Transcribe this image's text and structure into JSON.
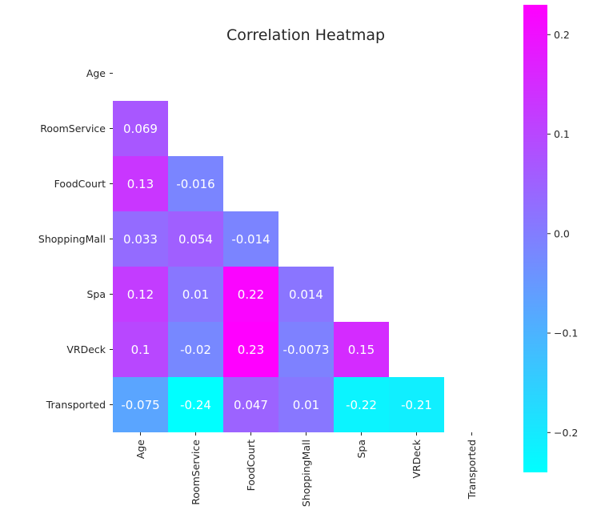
{
  "chart_data": {
    "type": "heatmap",
    "title": "Correlation Heatmap",
    "xlabel": "",
    "ylabel": "",
    "labels": [
      "Age",
      "RoomService",
      "FoodCourt",
      "ShoppingMall",
      "Spa",
      "VRDeck",
      "Transported"
    ],
    "mask": "upper-triangle-including-diagonal",
    "matrix": [
      [
        null,
        null,
        null,
        null,
        null,
        null,
        null
      ],
      [
        0.069,
        null,
        null,
        null,
        null,
        null,
        null
      ],
      [
        0.13,
        -0.016,
        null,
        null,
        null,
        null,
        null
      ],
      [
        0.033,
        0.054,
        -0.014,
        null,
        null,
        null,
        null
      ],
      [
        0.12,
        0.01,
        0.22,
        0.014,
        null,
        null,
        null
      ],
      [
        0.1,
        -0.02,
        0.23,
        -0.0073,
        0.15,
        null,
        null
      ],
      [
        -0.075,
        -0.24,
        0.047,
        0.01,
        -0.22,
        -0.21,
        null
      ]
    ],
    "annotations": [
      [
        null,
        null,
        null,
        null,
        null,
        null,
        null
      ],
      [
        "0.069",
        null,
        null,
        null,
        null,
        null,
        null
      ],
      [
        "0.13",
        "-0.016",
        null,
        null,
        null,
        null,
        null
      ],
      [
        "0.033",
        "0.054",
        "-0.014",
        null,
        null,
        null,
        null
      ],
      [
        "0.12",
        "0.01",
        "0.22",
        "0.014",
        null,
        null,
        null
      ],
      [
        "0.1",
        "-0.02",
        "0.23",
        "-0.0073",
        "0.15",
        null,
        null
      ],
      [
        "-0.075",
        "-0.24",
        "0.047",
        "0.01",
        "-0.22",
        "-0.21",
        null
      ]
    ],
    "colormap": "cool",
    "color_low": "#00ffff",
    "color_high": "#ff00ff",
    "annotation_color": "#ffffff",
    "vmin": -0.24,
    "vmax": 0.23,
    "colorbar": {
      "ticks": [
        0.2,
        0.1,
        0.0,
        -0.1,
        -0.2
      ],
      "tick_labels": [
        "0.2",
        "0.1",
        "0.0",
        "−0.1",
        "−0.2"
      ],
      "placement": "right"
    },
    "grid": false
  }
}
